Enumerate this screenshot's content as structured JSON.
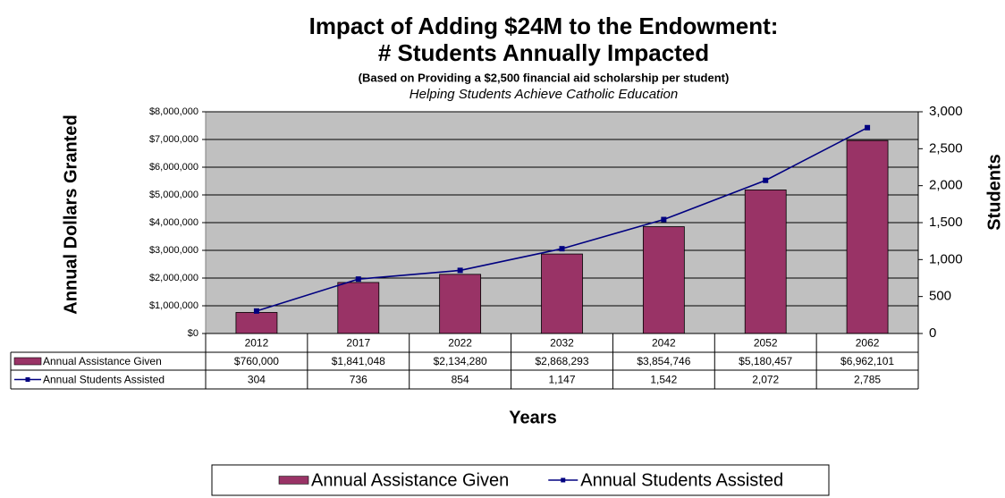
{
  "chart_data": {
    "type": "bar",
    "title": [
      "Impact of Adding $24M to the Endowment:",
      "# Students Annually Impacted"
    ],
    "subtitle": "(Based on Providing a $2,500 financial aid scholarship per student)",
    "annotation": "Helping Students Achieve Catholic Education",
    "y_label": "Annual Dollars Granted",
    "y2_label": "Students",
    "x_label": "Years",
    "categories": [
      "2012",
      "2017",
      "2022",
      "2032",
      "2042",
      "2052",
      "2062"
    ],
    "series": [
      {
        "name": "Annual Assistance Given",
        "type": "bar",
        "color": "#993366",
        "values": [
          760000,
          1841048,
          2134280,
          2868293,
          3854746,
          5180457,
          6962101
        ],
        "value_labels": [
          "$760,000",
          "$1,841,048",
          "$2,134,280",
          "$2,868,293",
          "$3,854,746",
          "$5,180,457",
          "$6,962,101"
        ]
      },
      {
        "name": "Annual Students Assisted",
        "type": "line",
        "axis": "y2",
        "color": "#000080",
        "values": [
          304,
          736,
          854,
          1147,
          1542,
          2072,
          2785
        ],
        "value_labels": [
          "304",
          "736",
          "854",
          "1,147",
          "1,542",
          "2,072",
          "2,785"
        ]
      }
    ],
    "ylim": [
      0,
      8000000
    ],
    "yticks": [
      {
        "value": 0,
        "label": "$0"
      },
      {
        "value": 1000000,
        "label": "$1,000,000"
      },
      {
        "value": 2000000,
        "label": "$2,000,000"
      },
      {
        "value": 3000000,
        "label": "$3,000,000"
      },
      {
        "value": 4000000,
        "label": "$4,000,000"
      },
      {
        "value": 5000000,
        "label": "$5,000,000"
      },
      {
        "value": 6000000,
        "label": "$6,000,000"
      },
      {
        "value": 7000000,
        "label": "$7,000,000"
      },
      {
        "value": 8000000,
        "label": "$8,000,000"
      }
    ],
    "y2lim": [
      0,
      3000
    ],
    "y2ticks": [
      0,
      500,
      {
        "value": 1000,
        "label": "1,000"
      },
      {
        "value": 1500,
        "label": "1,500"
      },
      {
        "value": 2000,
        "label": "2,000"
      },
      {
        "value": 2500,
        "label": "2,500"
      },
      {
        "value": 3000,
        "label": "3,000"
      }
    ],
    "grid": true,
    "legend": "bottom"
  }
}
